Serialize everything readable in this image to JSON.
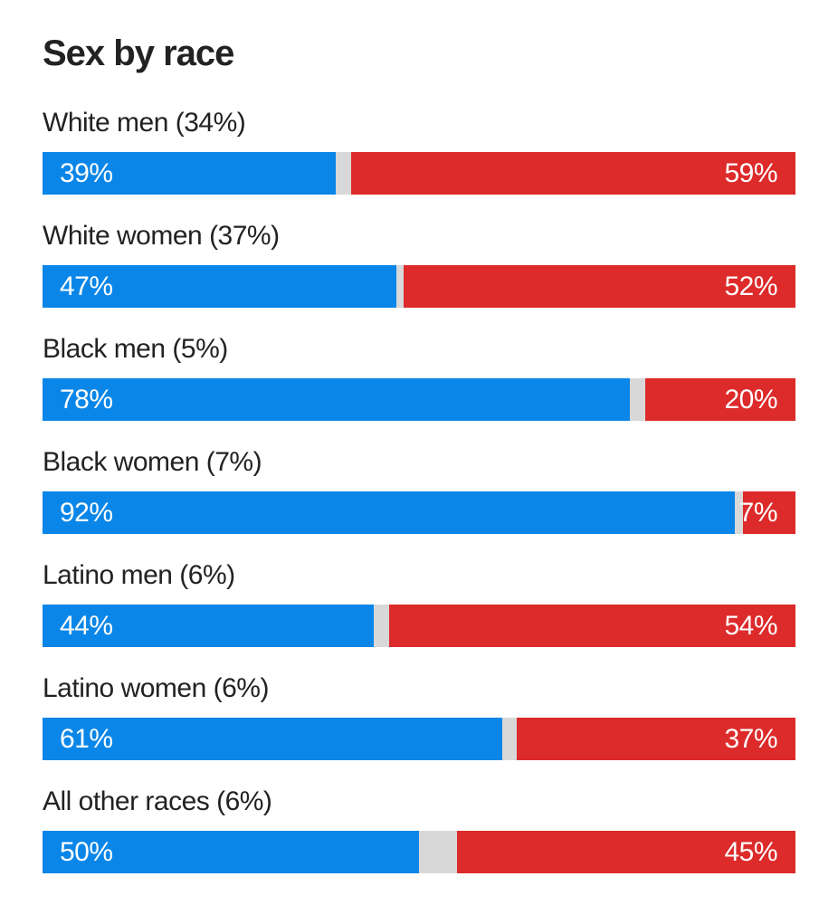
{
  "chart_data": {
    "type": "bar",
    "orientation": "horizontal-stacked",
    "title": "Sex by race",
    "xlim": [
      0,
      100
    ],
    "colors": {
      "dem": "#0a86e8",
      "rep": "#dd2a2a",
      "other": "#d8d8d8"
    },
    "categories": [
      "White men (34%)",
      "White women (37%)",
      "Black men (5%)",
      "Black women (7%)",
      "Latino men (6%)",
      "Latino women (6%)",
      "All other races (6%)"
    ],
    "series": [
      {
        "values": [
          39,
          47,
          78,
          92,
          44,
          61,
          50
        ],
        "labels": [
          "39%",
          "47%",
          "78%",
          "92%",
          "44%",
          "61%",
          "50%"
        ]
      },
      {
        "values": [
          59,
          52,
          20,
          7,
          54,
          37,
          45
        ],
        "labels": [
          "59%",
          "52%",
          "20%",
          "7%",
          "54%",
          "37%",
          "45%"
        ]
      }
    ]
  }
}
